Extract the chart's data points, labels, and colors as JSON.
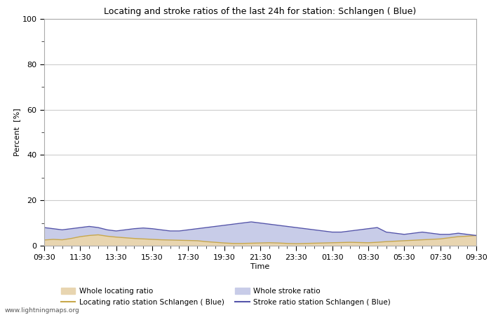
{
  "title": "Locating and stroke ratios of the last 24h for station: Schlangen ( Blue)",
  "xlabel": "Time",
  "ylabel": "Percent  [%]",
  "ylim": [
    0,
    100
  ],
  "yticks": [
    0,
    20,
    40,
    60,
    80,
    100
  ],
  "yticks_minor": [
    10,
    30,
    50,
    70,
    90
  ],
  "xtick_labels": [
    "09:30",
    "11:30",
    "13:30",
    "15:30",
    "17:30",
    "19:30",
    "21:30",
    "23:30",
    "01:30",
    "03:30",
    "05:30",
    "07:30",
    "09:30"
  ],
  "bg_color": "#ffffff",
  "plot_bg_color": "#ffffff",
  "grid_color": "#cccccc",
  "watermark": "www.lightningmaps.org",
  "whole_locating_color": "#e8d5b0",
  "whole_locating_line_color": "#c8a84b",
  "whole_stroke_color": "#c8cce8",
  "whole_stroke_line_color": "#5555aa",
  "legend_labels": [
    "Whole locating ratio",
    "Locating ratio station Schlangen ( Blue)",
    "Whole stroke ratio",
    "Stroke ratio station Schlangen ( Blue)"
  ],
  "whole_locating_data": [
    2.5,
    2.8,
    2.6,
    3.2,
    4.0,
    4.5,
    4.8,
    4.2,
    3.8,
    3.5,
    3.2,
    3.0,
    2.8,
    2.6,
    2.5,
    2.4,
    2.3,
    2.2,
    1.8,
    1.5,
    1.2,
    1.0,
    1.0,
    1.1,
    1.2,
    1.3,
    1.2,
    1.0,
    0.9,
    1.0,
    1.1,
    1.2,
    1.3,
    1.4,
    1.5,
    1.4,
    1.3,
    1.5,
    1.8,
    2.0,
    2.2,
    2.4,
    2.6,
    2.8,
    3.0,
    3.5,
    4.0,
    4.2,
    4.5
  ],
  "whole_stroke_data": [
    8.0,
    7.5,
    7.0,
    7.5,
    8.0,
    8.5,
    8.0,
    7.0,
    6.5,
    7.0,
    7.5,
    7.8,
    7.5,
    7.0,
    6.5,
    6.5,
    7.0,
    7.5,
    8.0,
    8.5,
    9.0,
    9.5,
    10.0,
    10.5,
    10.0,
    9.5,
    9.0,
    8.5,
    8.0,
    7.5,
    7.0,
    6.5,
    6.0,
    6.0,
    6.5,
    7.0,
    7.5,
    8.0,
    6.0,
    5.5,
    5.0,
    5.5,
    6.0,
    5.5,
    5.0,
    5.0,
    5.5,
    5.0,
    4.5
  ],
  "locating_station_data": [
    2.5,
    2.8,
    2.6,
    3.2,
    4.0,
    4.5,
    4.8,
    4.2,
    3.8,
    3.5,
    3.2,
    3.0,
    2.8,
    2.6,
    2.5,
    2.4,
    2.3,
    2.2,
    1.8,
    1.5,
    1.2,
    1.0,
    1.0,
    1.1,
    1.2,
    1.3,
    1.2,
    1.0,
    0.9,
    1.0,
    1.1,
    1.2,
    1.3,
    1.4,
    1.5,
    1.4,
    1.3,
    1.5,
    1.8,
    2.0,
    2.2,
    2.4,
    2.6,
    2.8,
    3.0,
    3.5,
    4.0,
    4.2,
    4.5
  ],
  "stroke_station_data": [
    8.0,
    7.5,
    7.0,
    7.5,
    8.0,
    8.5,
    8.0,
    7.0,
    6.5,
    7.0,
    7.5,
    7.8,
    7.5,
    7.0,
    6.5,
    6.5,
    7.0,
    7.5,
    8.0,
    8.5,
    9.0,
    9.5,
    10.0,
    10.5,
    10.0,
    9.5,
    9.0,
    8.5,
    8.0,
    7.5,
    7.0,
    6.5,
    6.0,
    6.0,
    6.5,
    7.0,
    7.5,
    8.0,
    6.0,
    5.5,
    5.0,
    5.5,
    6.0,
    5.5,
    5.0,
    5.0,
    5.5,
    5.0,
    4.5
  ],
  "n_points": 49
}
